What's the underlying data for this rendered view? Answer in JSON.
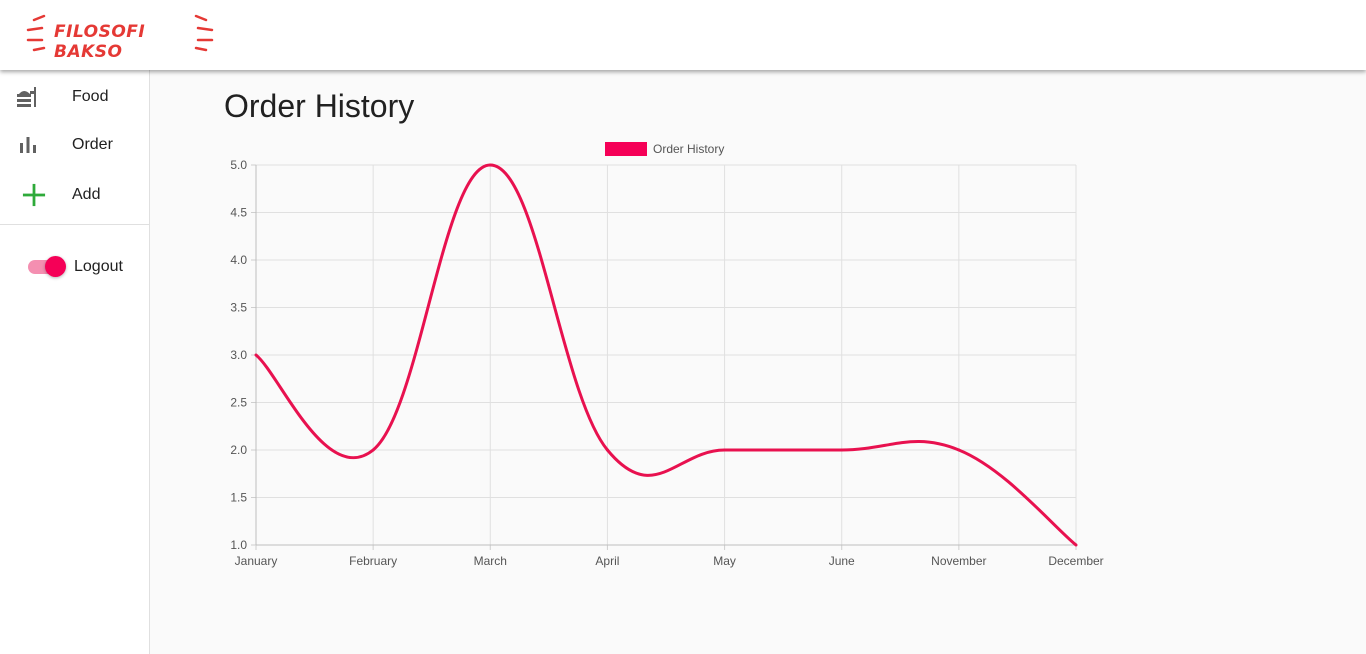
{
  "app": {
    "logo_text": "FILOSOFI BAKSO"
  },
  "sidebar": {
    "items": [
      {
        "label": "Food",
        "icon": "food-tray-icon"
      },
      {
        "label": "Order",
        "icon": "bar-chart-icon"
      },
      {
        "label": "Add",
        "icon": "plus-icon",
        "icon_color": "#2eaa3a"
      }
    ],
    "logout_label": "Logout",
    "logout_toggle_on": true
  },
  "main": {
    "title": "Order History"
  },
  "colors": {
    "accent": "#f50057",
    "line": "#e8114f",
    "logo": "#e53935"
  },
  "chart_data": {
    "type": "line",
    "categories": [
      "January",
      "February",
      "March",
      "April",
      "May",
      "June",
      "November",
      "December"
    ],
    "series": [
      {
        "name": "Order History",
        "values": [
          3,
          2,
          5,
          2,
          2,
          2,
          2,
          1
        ]
      }
    ],
    "ylim": [
      1,
      5
    ],
    "yticks": [
      1.0,
      1.5,
      2.0,
      2.5,
      3.0,
      3.5,
      4.0,
      4.5,
      5.0
    ],
    "ytick_labels": [
      "1.0",
      "1.5",
      "2.0",
      "2.5",
      "3.0",
      "3.5",
      "4.0",
      "4.5",
      "5.0"
    ],
    "grid": true,
    "legend": "top-center",
    "smooth": true
  }
}
